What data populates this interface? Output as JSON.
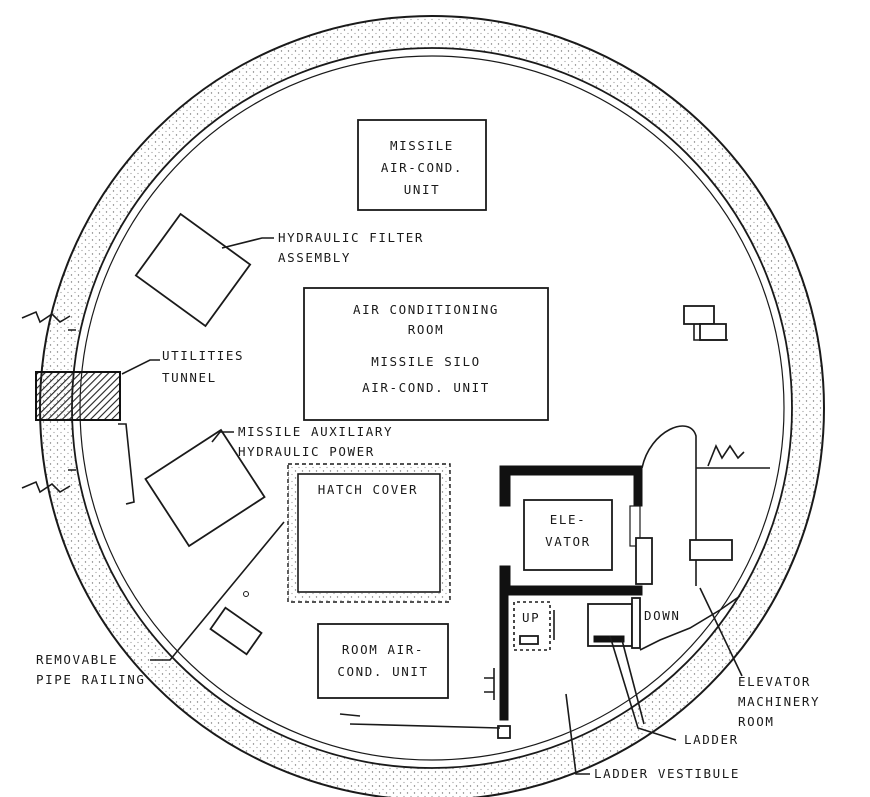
{
  "labels": {
    "missile_ac_unit": [
      "MISSILE",
      "AIR-COND.",
      "UNIT"
    ],
    "hydraulic_filter": [
      "HYDRAULIC FILTER",
      "ASSEMBLY"
    ],
    "ac_room": [
      "AIR CONDITIONING",
      "ROOM",
      "MISSILE SILO",
      "AIR-COND. UNIT"
    ],
    "utilities_tunnel": [
      "UTILITIES",
      "TUNNEL"
    ],
    "aux_hydraulic": [
      "MISSILE AUXILIARY",
      "HYDRAULIC POWER"
    ],
    "hatch_cover": "HATCH COVER",
    "elevator": [
      "ELE-",
      "VATOR"
    ],
    "up": "UP",
    "down": "DOWN",
    "room_ac_unit": [
      "ROOM AIR-",
      "COND. UNIT"
    ],
    "removable_railing": [
      "REMOVABLE",
      "PIPE RAILING"
    ],
    "elevator_machinery": [
      "ELEVATOR",
      "MACHINERY",
      "ROOM"
    ],
    "ladder": "LADDER",
    "ladder_vestibule": "LADDER VESTIBULE"
  },
  "colors": {
    "ink": "#1a1a1a",
    "concrete": "#f4f4f0",
    "stipple": "#8a8a8a"
  }
}
